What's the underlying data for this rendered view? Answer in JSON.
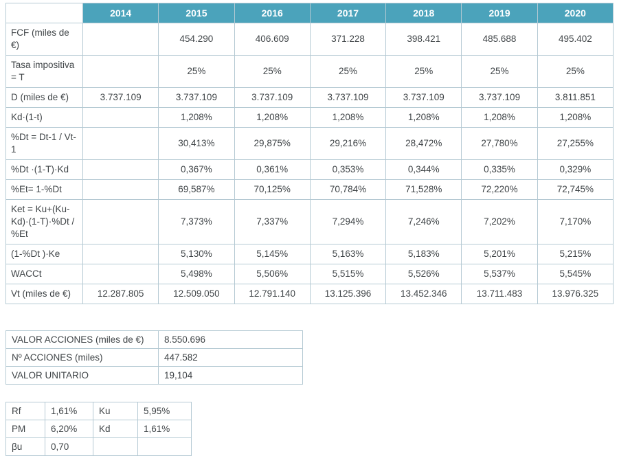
{
  "colors": {
    "header_bg": "#4ba3bb",
    "header_text": "#ffffff",
    "border": "#b4c9d3",
    "text": "#3f4447"
  },
  "main_table": {
    "corner_label": "",
    "years": [
      "2014",
      "2015",
      "2016",
      "2017",
      "2018",
      "2019",
      "2020"
    ],
    "rows": [
      {
        "label": "FCF (miles de €)",
        "values": [
          "",
          "454.290",
          "406.609",
          "371.228",
          "398.421",
          "485.688",
          "495.402"
        ]
      },
      {
        "label": "Tasa impositiva = T",
        "values": [
          "",
          "25%",
          "25%",
          "25%",
          "25%",
          "25%",
          "25%"
        ]
      },
      {
        "label": "D (miles de €)",
        "values": [
          "3.737.109",
          "3.737.109",
          "3.737.109",
          "3.737.109",
          "3.737.109",
          "3.737.109",
          "3.811.851"
        ]
      },
      {
        "label": "Kd·(1-t)",
        "values": [
          "",
          "1,208%",
          "1,208%",
          "1,208%",
          "1,208%",
          "1,208%",
          "1,208%"
        ]
      },
      {
        "label": "%Dt = Dt-1 / Vt-1",
        "values": [
          "",
          "30,413%",
          "29,875%",
          "29,216%",
          "28,472%",
          "27,780%",
          "27,255%"
        ]
      },
      {
        "label": "%Dt ·(1-T)·Kd",
        "values": [
          "",
          "0,367%",
          "0,361%",
          "0,353%",
          "0,344%",
          "0,335%",
          "0,329%"
        ]
      },
      {
        "label": "%Et= 1-%Dt",
        "values": [
          "",
          "69,587%",
          "70,125%",
          "70,784%",
          "71,528%",
          "72,220%",
          "72,745%"
        ]
      },
      {
        "label": "Ket = Ku+(Ku-Kd)·(1-T)·%Dt / %Et",
        "values": [
          "",
          "7,373%",
          "7,337%",
          "7,294%",
          "7,246%",
          "7,202%",
          "7,170%"
        ]
      },
      {
        "label": "(1-%Dt )·Ke",
        "values": [
          "",
          "5,130%",
          "5,145%",
          "5,163%",
          "5,183%",
          "5,201%",
          "5,215%"
        ]
      },
      {
        "label": "WACCt",
        "values": [
          "",
          "5,498%",
          "5,506%",
          "5,515%",
          "5,526%",
          "5,537%",
          "5,545%"
        ]
      },
      {
        "label": "Vt (miles de €)",
        "values": [
          "12.287.805",
          "12.509.050",
          "12.791.140",
          "13.125.396",
          "13.452.346",
          "13.711.483",
          "13.976.325"
        ]
      }
    ]
  },
  "summary_table": {
    "rows": [
      {
        "label": "VALOR ACCIONES (miles de €)",
        "value": "8.550.696"
      },
      {
        "label": "Nº ACCIONES (miles)",
        "value": "447.582"
      },
      {
        "label": "VALOR UNITARIO",
        "value": "19,104"
      }
    ]
  },
  "params_table": {
    "rows": [
      {
        "c1": "Rf",
        "v1": "1,61%",
        "c2": "Ku",
        "v2": "5,95%"
      },
      {
        "c1": "PM",
        "v1": "6,20%",
        "c2": "Kd",
        "v2": "1,61%"
      },
      {
        "c1": "βu",
        "v1": "0,70",
        "c2": "",
        "v2": ""
      }
    ]
  }
}
